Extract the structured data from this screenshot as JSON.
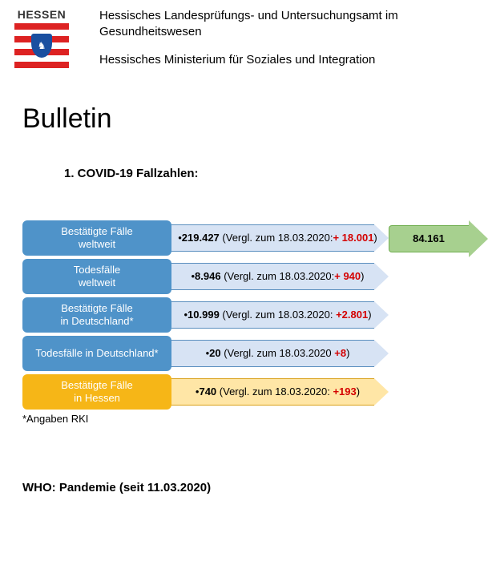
{
  "crest_text": "HESSEN",
  "header_line1": "Hessisches Landesprüfungs- und Untersuchungsamt im Gesundheitswesen",
  "header_line2": "Hessisches Ministerium für Soziales und Integration",
  "title": "Bulletin",
  "section_heading": "1.   COVID-19 Fallzahlen:",
  "green_arrow": {
    "value": "84.161",
    "fill": "#a7d08f",
    "border": "#6fae4f"
  },
  "rows": [
    {
      "label_l1": "Bestätigte Fälle",
      "label_l2": "weltweit",
      "label_color": "#4f93c9",
      "value": "219.427",
      "comparison": " (Vergl. zum 18.03.2020:",
      "delta": "+ 18.001",
      "delta_color": "#d40000",
      "closing": ")",
      "data_fill": "#d7e3f4",
      "data_border": "#5b8fbf"
    },
    {
      "label_l1": "Todesfälle",
      "label_l2": "weltweit",
      "label_color": "#4f93c9",
      "value": "8.946",
      "comparison": " (Vergl. zum 18.03.2020:",
      "delta": "+ 940",
      "delta_color": "#d40000",
      "closing": ")",
      "data_fill": "#d7e3f4",
      "data_border": "#5b8fbf"
    },
    {
      "label_l1": "Bestätigte Fälle",
      "label_l2": "in Deutschland*",
      "label_color": "#4f93c9",
      "value": "10.999",
      "comparison": " (Vergl. zum 18.03.2020: ",
      "delta": "+2.801",
      "delta_color": "#d40000",
      "closing": ")",
      "data_fill": "#d7e3f4",
      "data_border": "#5b8fbf"
    },
    {
      "label_l1": "Todesfälle in Deutschland*",
      "label_l2": "",
      "label_color": "#4f93c9",
      "value": "20",
      "comparison": " (Vergl. zum 18.03.2020 ",
      "delta": "+8",
      "delta_color": "#d40000",
      "closing": ")",
      "data_fill": "#d7e3f4",
      "data_border": "#5b8fbf"
    },
    {
      "label_l1": "Bestätigte Fälle",
      "label_l2": "in Hessen",
      "label_color": "#f6b617",
      "value": "740",
      "comparison": " (Vergl. zum 18.03.2020: ",
      "delta": "+193",
      "delta_color": "#d40000",
      "closing": ")",
      "data_fill": "#ffe6a6",
      "data_border": "#d9a11a"
    }
  ],
  "note": "*Angaben RKI",
  "who_line": "WHO: Pandemie (seit 11.03.2020)",
  "colors": {
    "stripe_red": "#d22",
    "shield_blue": "#1a4fa0"
  }
}
